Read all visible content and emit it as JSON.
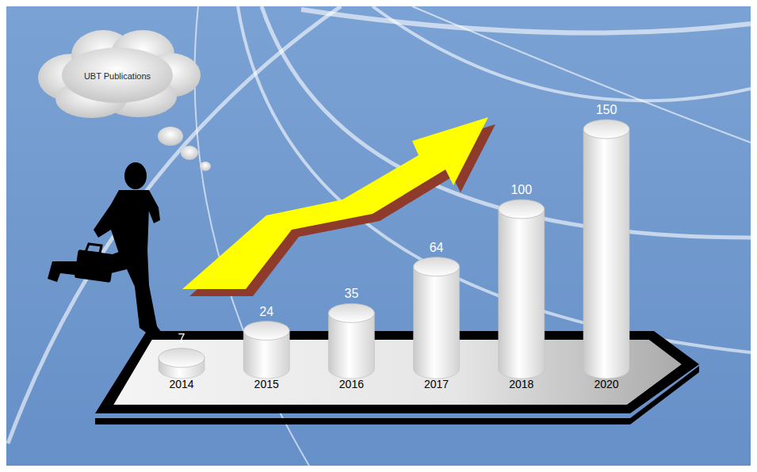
{
  "chart_data": {
    "type": "bar",
    "title": "UBT Publications",
    "categories": [
      "2014",
      "2015",
      "2016",
      "2017",
      "2018",
      "2020"
    ],
    "values": [
      7,
      24,
      35,
      64,
      100,
      150
    ],
    "color": "#ffffff",
    "ylim": [
      0,
      150
    ],
    "data_labels": true,
    "tick_labels": "x"
  }
}
